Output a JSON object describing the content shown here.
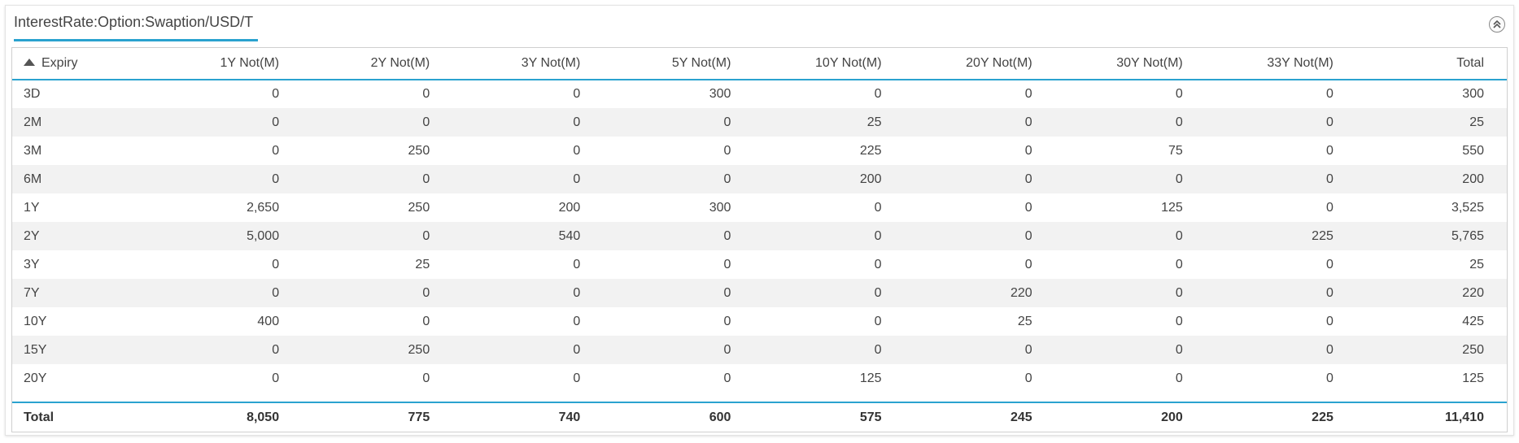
{
  "panel": {
    "title": "InterestRate:Option:Swaption/USD/T",
    "collapse_icon": "collapse-up-icon"
  },
  "table": {
    "columns": [
      "Expiry",
      "1Y Not(M)",
      "2Y Not(M)",
      "3Y Not(M)",
      "5Y Not(M)",
      "10Y Not(M)",
      "20Y Not(M)",
      "30Y Not(M)",
      "33Y Not(M)",
      "Total"
    ],
    "sort": {
      "column": "Expiry",
      "direction": "ascending"
    },
    "rows": [
      [
        "3D",
        "0",
        "0",
        "0",
        "300",
        "0",
        "0",
        "0",
        "0",
        "300"
      ],
      [
        "2M",
        "0",
        "0",
        "0",
        "0",
        "25",
        "0",
        "0",
        "0",
        "25"
      ],
      [
        "3M",
        "0",
        "250",
        "0",
        "0",
        "225",
        "0",
        "75",
        "0",
        "550"
      ],
      [
        "6M",
        "0",
        "0",
        "0",
        "0",
        "200",
        "0",
        "0",
        "0",
        "200"
      ],
      [
        "1Y",
        "2,650",
        "250",
        "200",
        "300",
        "0",
        "0",
        "125",
        "0",
        "3,525"
      ],
      [
        "2Y",
        "5,000",
        "0",
        "540",
        "0",
        "0",
        "0",
        "0",
        "225",
        "5,765"
      ],
      [
        "3Y",
        "0",
        "25",
        "0",
        "0",
        "0",
        "0",
        "0",
        "0",
        "25"
      ],
      [
        "7Y",
        "0",
        "0",
        "0",
        "0",
        "0",
        "220",
        "0",
        "0",
        "220"
      ],
      [
        "10Y",
        "400",
        "0",
        "0",
        "0",
        "0",
        "25",
        "0",
        "0",
        "425"
      ],
      [
        "15Y",
        "0",
        "250",
        "0",
        "0",
        "0",
        "0",
        "0",
        "0",
        "250"
      ],
      [
        "20Y",
        "0",
        "0",
        "0",
        "0",
        "125",
        "0",
        "0",
        "0",
        "125"
      ]
    ],
    "totals": [
      "Total",
      "8,050",
      "775",
      "740",
      "600",
      "575",
      "245",
      "200",
      "225",
      "11,410"
    ]
  },
  "colors": {
    "accent": "#2aa2cf",
    "stripe": "#f2f2f2"
  }
}
